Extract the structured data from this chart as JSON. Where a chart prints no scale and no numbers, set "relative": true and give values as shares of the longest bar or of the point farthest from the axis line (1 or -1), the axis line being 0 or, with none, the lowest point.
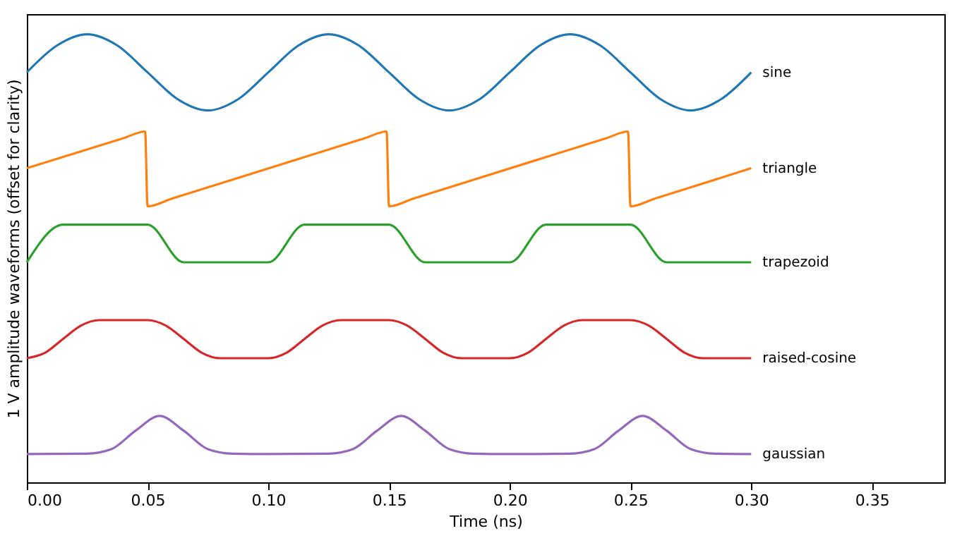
{
  "chart_data": {
    "type": "line",
    "relative": true,
    "xlabel": "Time (ns)",
    "ylabel": "1 V amplitude waveforms (offset for clarity)",
    "xlim": [
      0,
      0.38
    ],
    "xticks": [
      {
        "value": 0,
        "label": "0.00"
      },
      0.05,
      {
        "value": 0.1,
        "label": "0.10"
      },
      0.15,
      {
        "value": 0.2,
        "label": "0.20"
      },
      0.25,
      {
        "value": 0.3,
        "label": "0.30"
      },
      0.35
    ],
    "tick_labels": "x",
    "grid": false,
    "legend": false,
    "marker": "none",
    "line_style": "solid",
    "series": [
      {
        "name": "sine",
        "color": "#1f77b4",
        "x": [
          0,
          0.0125,
          0.025,
          0.0375,
          0.05,
          0.0625,
          0.075,
          0.0875,
          0.1,
          0.1125,
          0.125,
          0.1375,
          0.15,
          0.1625,
          0.175,
          0.1875,
          0.2,
          0.2125,
          0.225,
          0.2375,
          0.25,
          0.2625,
          0.275,
          0.2875,
          0.3
        ],
        "values": [
          0.915,
          0.975,
          1.0,
          0.975,
          0.915,
          0.855,
          0.83,
          0.855,
          0.915,
          0.975,
          1.0,
          0.975,
          0.915,
          0.855,
          0.83,
          0.855,
          0.915,
          0.975,
          1.0,
          0.975,
          0.915,
          0.855,
          0.83,
          0.855,
          0.915
        ]
      },
      {
        "name": "triangle",
        "color": "#ff7f0e",
        "x": [
          0,
          0.04,
          0.049,
          0.05,
          0.06,
          0.14,
          0.149,
          0.15,
          0.16,
          0.24,
          0.249,
          0.25,
          0.26,
          0.3
        ],
        "values": [
          0.701,
          0.768,
          0.783,
          0.616,
          0.633,
          0.768,
          0.783,
          0.616,
          0.633,
          0.768,
          0.783,
          0.616,
          0.633,
          0.701
        ]
      },
      {
        "name": "trapezoid",
        "color": "#2ca02c",
        "x": [
          0,
          0.015,
          0.05,
          0.065,
          0.1,
          0.115,
          0.15,
          0.165,
          0.2,
          0.215,
          0.25,
          0.265,
          0.3
        ],
        "values": [
          0.491,
          0.575,
          0.575,
          0.491,
          0.491,
          0.575,
          0.575,
          0.491,
          0.491,
          0.575,
          0.575,
          0.491,
          0.491
        ]
      },
      {
        "name": "raised-cosine",
        "color": "#d62728",
        "x": [
          0,
          0.0075,
          0.015,
          0.0225,
          0.03,
          0.05,
          0.0575,
          0.065,
          0.0725,
          0.08,
          0.1,
          0.1075,
          0.115,
          0.1225,
          0.13,
          0.15,
          0.1575,
          0.165,
          0.1725,
          0.18,
          0.2,
          0.2075,
          0.215,
          0.2225,
          0.23,
          0.25,
          0.2575,
          0.265,
          0.2725,
          0.28,
          0.3
        ],
        "values": [
          0.277,
          0.289,
          0.32,
          0.35,
          0.362,
          0.362,
          0.35,
          0.32,
          0.289,
          0.277,
          0.277,
          0.289,
          0.32,
          0.35,
          0.362,
          0.362,
          0.35,
          0.32,
          0.289,
          0.277,
          0.277,
          0.289,
          0.32,
          0.35,
          0.362,
          0.362,
          0.35,
          0.32,
          0.289,
          0.277,
          0.277
        ]
      },
      {
        "name": "gaussian",
        "color": "#9467bd",
        "x": [
          0,
          0.025,
          0.035,
          0.045,
          0.055,
          0.065,
          0.075,
          0.085,
          0.1,
          0.125,
          0.135,
          0.145,
          0.155,
          0.165,
          0.175,
          0.185,
          0.2,
          0.225,
          0.235,
          0.245,
          0.255,
          0.265,
          0.275,
          0.285,
          0.3
        ],
        "values": [
          0.063,
          0.064,
          0.074,
          0.115,
          0.148,
          0.115,
          0.074,
          0.064,
          0.063,
          0.064,
          0.074,
          0.115,
          0.148,
          0.115,
          0.074,
          0.064,
          0.063,
          0.064,
          0.074,
          0.115,
          0.148,
          0.115,
          0.074,
          0.064,
          0.063
        ]
      }
    ]
  }
}
